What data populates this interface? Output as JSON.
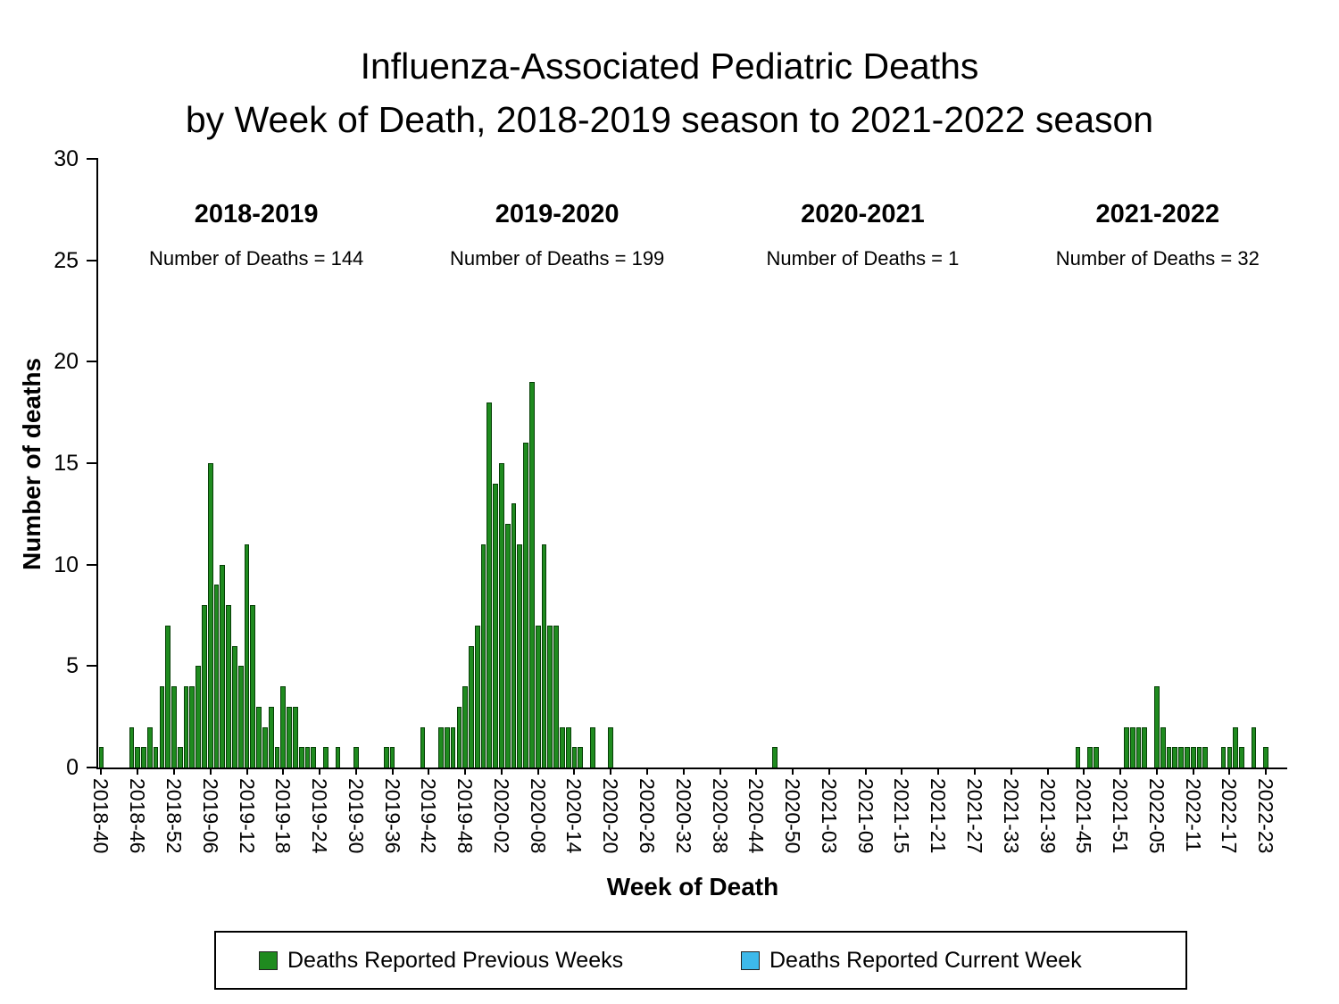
{
  "title": {
    "line1": "Influenza-Associated Pediatric Deaths",
    "line2": "by Week of Death, 2018-2019 season to 2021-2022 season"
  },
  "y_axis": {
    "label": "Number of deaths",
    "ticks": [
      0,
      5,
      10,
      15,
      20,
      25,
      30
    ]
  },
  "x_axis": {
    "label": "Week of Death",
    "tick_every": 6
  },
  "seasons": [
    {
      "name": "2018-2019",
      "deaths_label": "Number of Deaths = 144",
      "total": 144
    },
    {
      "name": "2019-2020",
      "deaths_label": "Number of Deaths = 199",
      "total": 199
    },
    {
      "name": "2020-2021",
      "deaths_label": "Number of Deaths = 1",
      "total": 1
    },
    {
      "name": "2021-2022",
      "deaths_label": "Number of Deaths = 32",
      "total": 32
    }
  ],
  "legend": {
    "items": [
      {
        "label": "Deaths Reported Previous Weeks",
        "color": "#1f8b1f"
      },
      {
        "label": "Deaths Reported Current Week",
        "color": "#3db9ea"
      }
    ]
  },
  "chart_data": {
    "type": "bar",
    "title": "Influenza-Associated Pediatric Deaths by Week of Death, 2018-2019 season to 2021-2022 season",
    "xlabel": "Week of Death",
    "ylabel": "Number of deaths",
    "ylim": [
      0,
      30
    ],
    "yticks": [
      0,
      5,
      10,
      15,
      20,
      25,
      30
    ],
    "x_tick_labels_every": 6,
    "x_start_year": 2018,
    "x_start_week": 40,
    "x_end_year": 2022,
    "x_end_week": 26,
    "weeks_per_year": {
      "2018": 52,
      "2019": 52,
      "2020": 53,
      "2021": 52,
      "2022": 52
    },
    "bar_color": "#1f8b1f",
    "bar_border_color": "#063f06",
    "current_week_color": "#3db9ea",
    "points": {
      "2018-40": 1,
      "2018-45": 2,
      "2018-46": 1,
      "2018-47": 1,
      "2018-48": 2,
      "2018-49": 1,
      "2018-50": 4,
      "2018-51": 7,
      "2018-52": 4,
      "2019-01": 1,
      "2019-02": 4,
      "2019-03": 4,
      "2019-04": 5,
      "2019-05": 8,
      "2019-06": 15,
      "2019-07": 9,
      "2019-08": 10,
      "2019-09": 8,
      "2019-10": 6,
      "2019-11": 5,
      "2019-12": 11,
      "2019-13": 8,
      "2019-14": 3,
      "2019-15": 2,
      "2019-16": 3,
      "2019-17": 1,
      "2019-18": 4,
      "2019-19": 3,
      "2019-20": 3,
      "2019-21": 1,
      "2019-22": 1,
      "2019-23": 1,
      "2019-25": 1,
      "2019-27": 1,
      "2019-30": 1,
      "2019-35": 1,
      "2019-36": 1,
      "2019-41": 2,
      "2019-44": 2,
      "2019-45": 2,
      "2019-46": 2,
      "2019-47": 3,
      "2019-48": 4,
      "2019-49": 6,
      "2019-50": 7,
      "2019-51": 11,
      "2019-52": 18,
      "2020-01": 14,
      "2020-02": 15,
      "2020-03": 12,
      "2020-04": 13,
      "2020-05": 11,
      "2020-06": 16,
      "2020-07": 19,
      "2020-08": 7,
      "2020-09": 11,
      "2020-10": 7,
      "2020-11": 7,
      "2020-12": 2,
      "2020-13": 2,
      "2020-14": 1,
      "2020-15": 1,
      "2020-17": 2,
      "2020-20": 2,
      "2020-47": 1,
      "2021-44": 1,
      "2021-46": 1,
      "2021-47": 1,
      "2021-52": 2,
      "2022-01": 2,
      "2022-02": 2,
      "2022-03": 2,
      "2022-05": 4,
      "2022-06": 2,
      "2022-07": 1,
      "2022-08": 1,
      "2022-09": 1,
      "2022-10": 1,
      "2022-11": 1,
      "2022-12": 1,
      "2022-13": 1,
      "2022-16": 1,
      "2022-17": 1,
      "2022-18": 2,
      "2022-19": 1,
      "2022-21": 2,
      "2022-23": 1
    }
  }
}
